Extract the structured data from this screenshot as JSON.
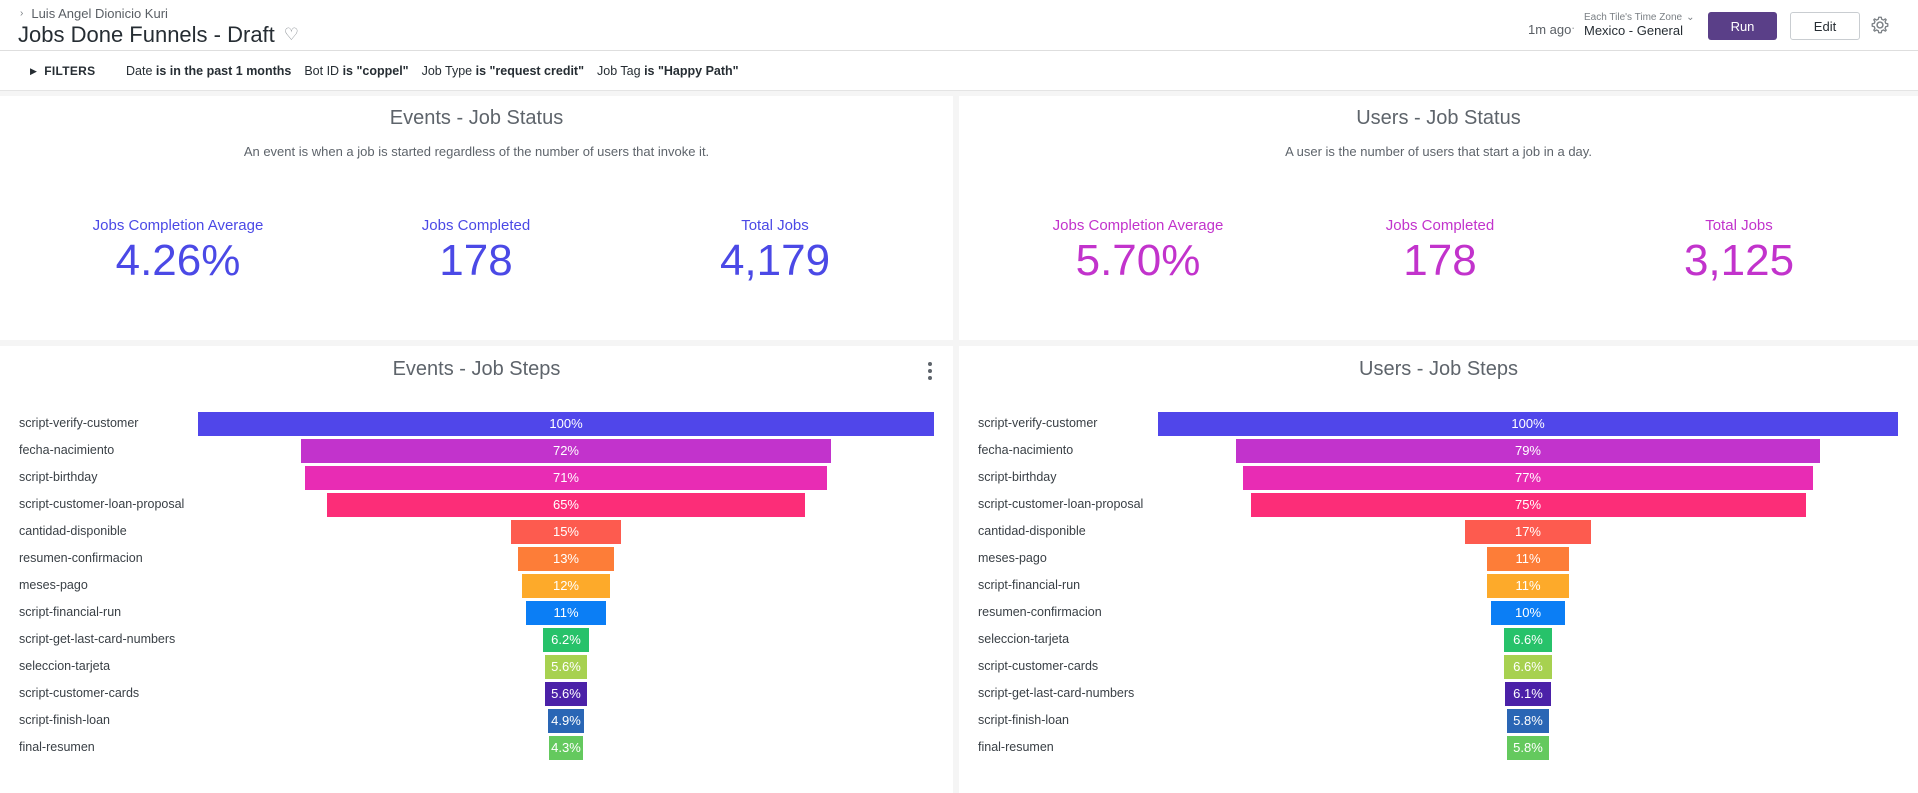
{
  "header": {
    "breadcrumb": "Luis Angel Dionicio Kuri",
    "title": "Jobs Done Funnels - Draft",
    "updated": "1m ago",
    "timezone_label": "Each Tile's Time Zone",
    "timezone_value": "Mexico - General",
    "run_label": "Run",
    "edit_label": "Edit"
  },
  "filters": {
    "toggle_label": "FILTERS",
    "items": [
      {
        "field": "Date",
        "op": "is in the past 1 months"
      },
      {
        "field": "Bot ID",
        "op": "is \"coppel\""
      },
      {
        "field": "Job Type",
        "op": "is \"request credit\""
      },
      {
        "field": "Job Tag",
        "op": "is \"Happy Path\""
      }
    ]
  },
  "colors": {
    "events_kpi": "#4b49e6",
    "users_kpi": "#c233cc",
    "run_button": "#5a3f88",
    "funnel_palette": [
      "#5046ea",
      "#c233cc",
      "#e82cb4",
      "#fc2d78",
      "#fd5b4f",
      "#fd7d38",
      "#fdaa2a",
      "#0b7ef5",
      "#27c26a",
      "#a7d150",
      "#4b21a8",
      "#2a66b5",
      "#64c95e"
    ]
  },
  "events_status": {
    "title": "Events - Job Status",
    "subtitle": "An event is when a job is started regardless of the number of users that invoke it.",
    "kpis": [
      {
        "label": "Jobs Completion Average",
        "value": "4.26%"
      },
      {
        "label": "Jobs Completed",
        "value": "178"
      },
      {
        "label": "Total Jobs",
        "value": "4,179"
      }
    ]
  },
  "users_status": {
    "title": "Users - Job Status",
    "subtitle": "A user is the number of users that start a job in a day.",
    "kpis": [
      {
        "label": "Jobs Completion Average",
        "value": "5.70%"
      },
      {
        "label": "Jobs Completed",
        "value": "178"
      },
      {
        "label": "Total Jobs",
        "value": "3,125"
      }
    ]
  },
  "events_steps": {
    "title": "Events - Job Steps",
    "steps": [
      {
        "name": "script-verify-customer",
        "pct": 100,
        "label": "100%"
      },
      {
        "name": "fecha-nacimiento",
        "pct": 72,
        "label": "72%"
      },
      {
        "name": "script-birthday",
        "pct": 71,
        "label": "71%"
      },
      {
        "name": "script-customer-loan-proposal",
        "pct": 65,
        "label": "65%"
      },
      {
        "name": "cantidad-disponible",
        "pct": 15,
        "label": "15%"
      },
      {
        "name": "resumen-confirmacion",
        "pct": 13,
        "label": "13%"
      },
      {
        "name": "meses-pago",
        "pct": 12,
        "label": "12%"
      },
      {
        "name": "script-financial-run",
        "pct": 11,
        "label": "11%"
      },
      {
        "name": "script-get-last-card-numbers",
        "pct": 6.2,
        "label": "6.2%"
      },
      {
        "name": "seleccion-tarjeta",
        "pct": 5.6,
        "label": "5.6%"
      },
      {
        "name": "script-customer-cards",
        "pct": 5.6,
        "label": "5.6%"
      },
      {
        "name": "script-finish-loan",
        "pct": 4.9,
        "label": "4.9%"
      },
      {
        "name": "final-resumen",
        "pct": 4.3,
        "label": "4.3%"
      }
    ]
  },
  "users_steps": {
    "title": "Users - Job Steps",
    "steps": [
      {
        "name": "script-verify-customer",
        "pct": 100,
        "label": "100%"
      },
      {
        "name": "fecha-nacimiento",
        "pct": 79,
        "label": "79%"
      },
      {
        "name": "script-birthday",
        "pct": 77,
        "label": "77%"
      },
      {
        "name": "script-customer-loan-proposal",
        "pct": 75,
        "label": "75%"
      },
      {
        "name": "cantidad-disponible",
        "pct": 17,
        "label": "17%"
      },
      {
        "name": "meses-pago",
        "pct": 11,
        "label": "11%"
      },
      {
        "name": "script-financial-run",
        "pct": 11,
        "label": "11%"
      },
      {
        "name": "resumen-confirmacion",
        "pct": 10,
        "label": "10%"
      },
      {
        "name": "seleccion-tarjeta",
        "pct": 6.6,
        "label": "6.6%"
      },
      {
        "name": "script-customer-cards",
        "pct": 6.6,
        "label": "6.6%"
      },
      {
        "name": "script-get-last-card-numbers",
        "pct": 6.1,
        "label": "6.1%"
      },
      {
        "name": "script-finish-loan",
        "pct": 5.8,
        "label": "5.8%"
      },
      {
        "name": "final-resumen",
        "pct": 5.8,
        "label": "5.8%"
      }
    ]
  }
}
